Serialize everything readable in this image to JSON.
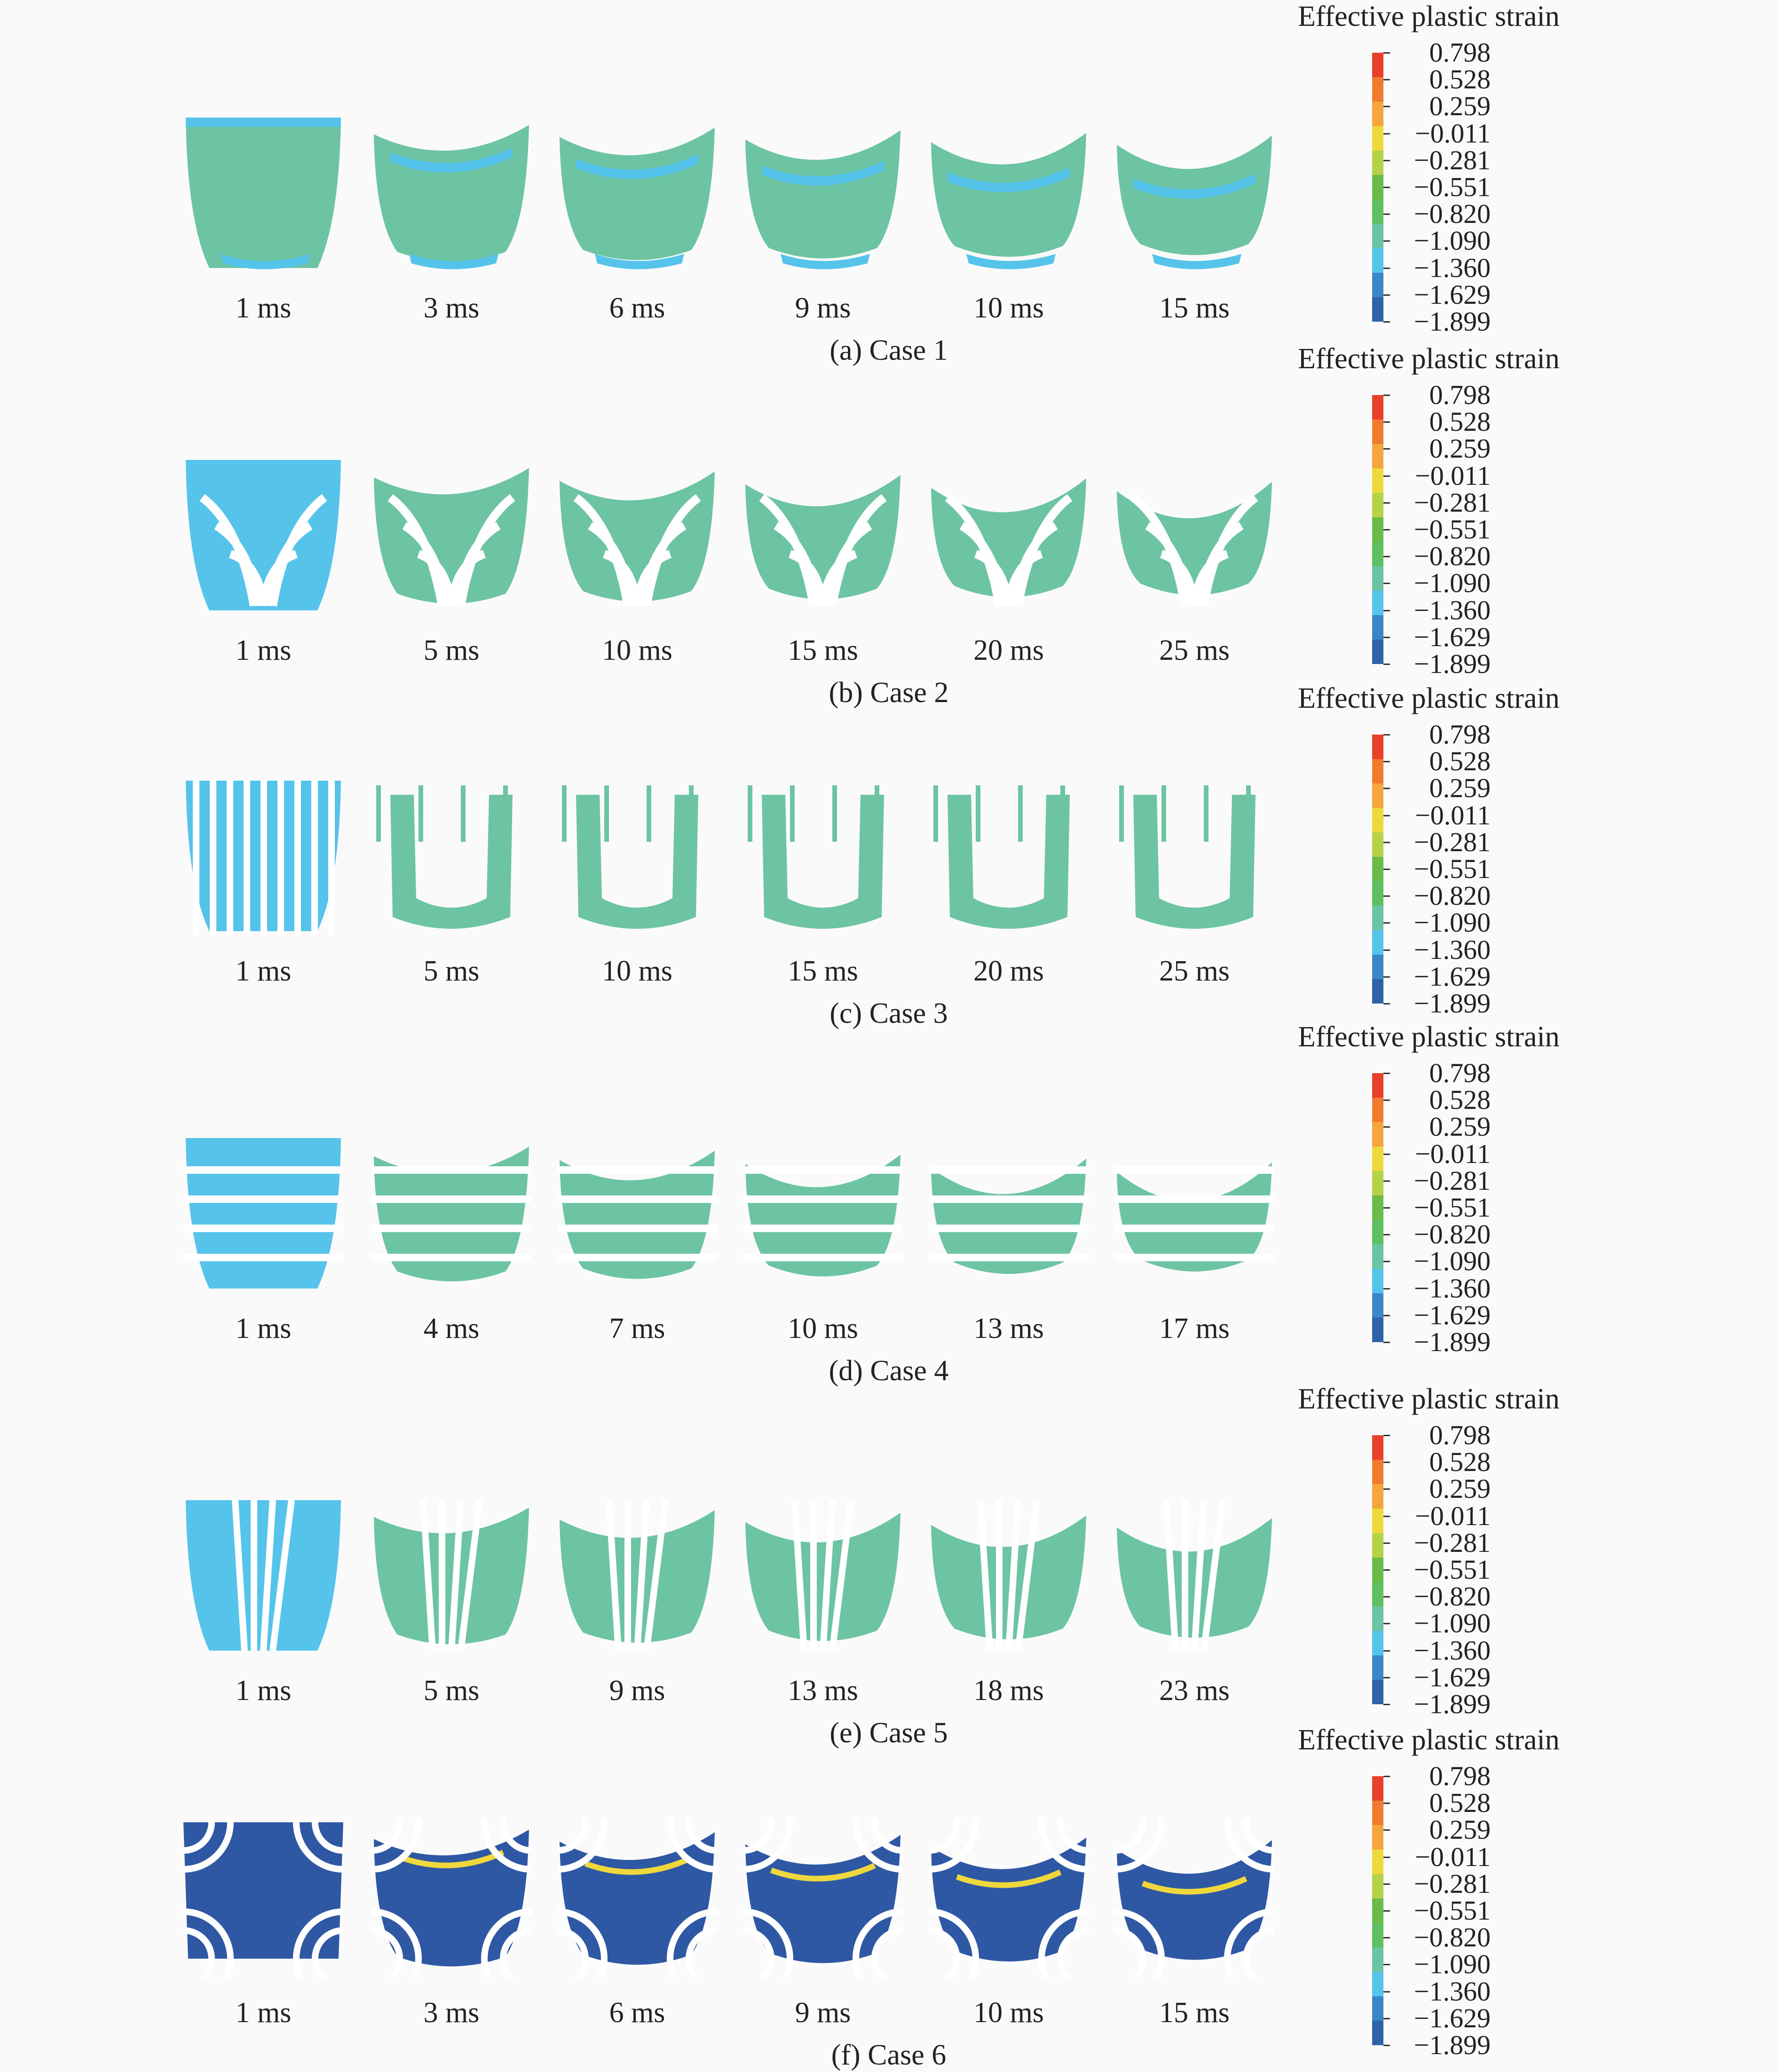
{
  "legend": {
    "title": "Effective plastic strain",
    "values": [
      "0.798",
      "0.528",
      "0.259",
      "−0.011",
      "−0.281",
      "−0.551",
      "−0.820",
      "−1.090",
      "−1.360",
      "−1.629",
      "−1.899"
    ],
    "colors": [
      "#e8402a",
      "#f07a30",
      "#f3a73a",
      "#eed83c",
      "#b5d24a",
      "#6cbb48",
      "#5fbf62",
      "#6cc4a2",
      "#56c4ea",
      "#3a86c6",
      "#2e63a8"
    ]
  },
  "colors": {
    "case_main": "#6cc4a2",
    "initial": "#56c4ea",
    "case6_body": "#2f58a4",
    "case6_inner": "#2a63a8",
    "gap": "#ffffff"
  },
  "rows": [
    {
      "caption": "(a) Case 1",
      "times": [
        "1 ms",
        "3 ms",
        "6 ms",
        "9 ms",
        "10 ms",
        "15 ms"
      ]
    },
    {
      "caption": "(b) Case 2",
      "times": [
        "1 ms",
        "5 ms",
        "10 ms",
        "15 ms",
        "20 ms",
        "25 ms"
      ]
    },
    {
      "caption": "(c) Case 3",
      "times": [
        "1 ms",
        "5 ms",
        "10 ms",
        "15 ms",
        "20 ms",
        "25 ms"
      ]
    },
    {
      "caption": "(d) Case 4",
      "times": [
        "1 ms",
        "4 ms",
        "7 ms",
        "10 ms",
        "13 ms",
        "17 ms"
      ]
    },
    {
      "caption": "(e) Case 5",
      "times": [
        "1 ms",
        "5 ms",
        "9 ms",
        "13 ms",
        "18 ms",
        "23 ms"
      ]
    },
    {
      "caption": "(f) Case 6",
      "times": [
        "1 ms",
        "3 ms",
        "6 ms",
        "9 ms",
        "10 ms",
        "15 ms"
      ]
    }
  ]
}
